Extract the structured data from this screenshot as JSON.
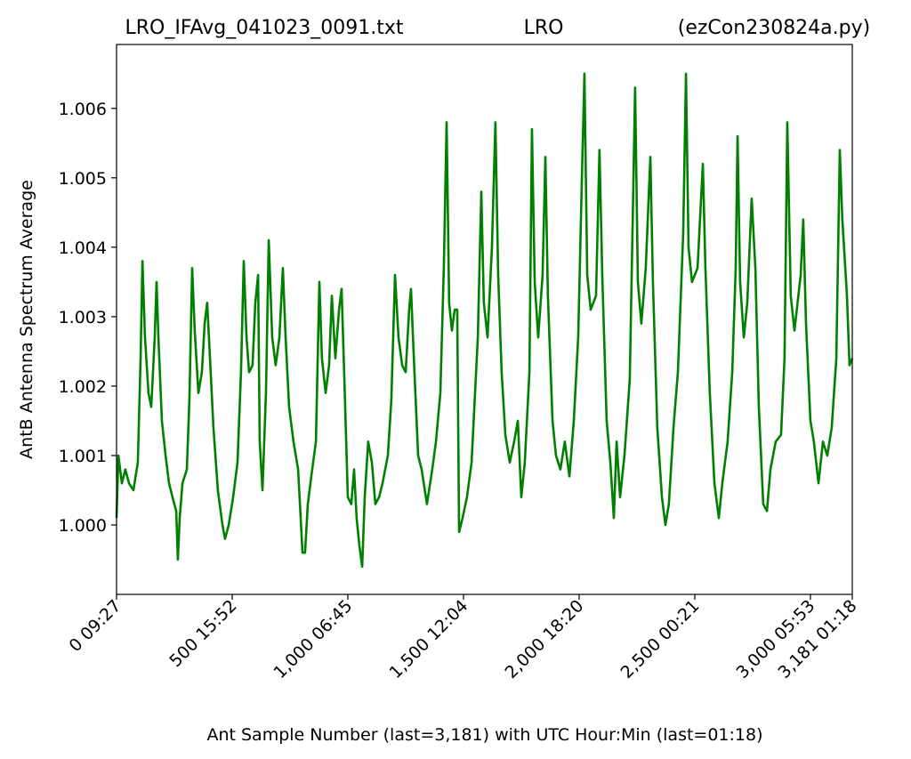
{
  "chart_data": {
    "type": "line",
    "titles": [
      "LRO_IFAvg_041023_0091.txt",
      "LRO",
      "(ezCon230824a.py)"
    ],
    "xlabel": "Ant Sample Number (last=3,181) with UTC Hour:Min (last=01:18)",
    "ylabel": "AntB Antenna Spectrum Average",
    "xlim": [
      0,
      3181
    ],
    "ylim": [
      0.999,
      1.00692
    ],
    "xticks": [
      {
        "value": 0,
        "label": "0  09:27"
      },
      {
        "value": 500,
        "label": "500  15:52"
      },
      {
        "value": 1000,
        "label": "1,000  06:45"
      },
      {
        "value": 1500,
        "label": "1,500  12:04"
      },
      {
        "value": 2000,
        "label": "2,000  18:20"
      },
      {
        "value": 2500,
        "label": "2,500  00:21"
      },
      {
        "value": 3000,
        "label": "3,000  05:53"
      },
      {
        "value": 3181,
        "label": "3,181  01:18"
      }
    ],
    "yticks": [
      {
        "value": 1,
        "label": "1.000"
      },
      1.001,
      1.002,
      1.003,
      1.004,
      1.005,
      1.006
    ],
    "grid": false,
    "series": [
      {
        "name": "AntB",
        "color": "#008000",
        "x": [
          0,
          8,
          23,
          38,
          54,
          73,
          92,
          104,
          112,
          123,
          138,
          150,
          165,
          173,
          181,
          196,
          212,
          227,
          242,
          258,
          265,
          273,
          285,
          304,
          315,
          327,
          338,
          354,
          369,
          381,
          392,
          404,
          419,
          438,
          458,
          469,
          485,
          504,
          523,
          538,
          550,
          562,
          573,
          588,
          600,
          612,
          619,
          631,
          646,
          658,
          673,
          688,
          704,
          719,
          731,
          746,
          765,
          785,
          804,
          815,
          827,
          842,
          862,
          877,
          888,
          904,
          919,
          931,
          946,
          962,
          973,
          985,
          1000,
          1015,
          1027,
          1038,
          1050,
          1062,
          1073,
          1088,
          1104,
          1119,
          1135,
          1150,
          1173,
          1188,
          1204,
          1219,
          1235,
          1250,
          1265,
          1273,
          1288,
          1304,
          1319,
          1342,
          1365,
          1381,
          1400,
          1415,
          1427,
          1438,
          1450,
          1462,
          1473,
          1481,
          1496,
          1515,
          1535,
          1562,
          1577,
          1588,
          1604,
          1623,
          1638,
          1650,
          1665,
          1681,
          1700,
          1719,
          1735,
          1750,
          1765,
          1785,
          1796,
          1808,
          1823,
          1842,
          1854,
          1865,
          1885,
          1900,
          1919,
          1938,
          1958,
          1977,
          1996,
          2012,
          2023,
          2035,
          2050,
          2073,
          2088,
          2100,
          2119,
          2135,
          2150,
          2162,
          2177,
          2196,
          2219,
          2235,
          2242,
          2254,
          2269,
          2288,
          2308,
          2319,
          2338,
          2358,
          2373,
          2388,
          2408,
          2427,
          2450,
          2462,
          2473,
          2488,
          2512,
          2535,
          2546,
          2565,
          2585,
          2604,
          2619,
          2642,
          2662,
          2677,
          2685,
          2696,
          2712,
          2727,
          2746,
          2762,
          2777,
          2796,
          2812,
          2827,
          2850,
          2873,
          2888,
          2900,
          2915,
          2931,
          2958,
          2969,
          2981,
          3000,
          3015,
          3035,
          3054,
          3073,
          3092,
          3112,
          3127,
          3138,
          3158,
          3169,
          3181
        ],
        "values": [
          1.0001,
          1.001,
          1.0006,
          1.0008,
          1.0006,
          1.0005,
          1.0009,
          1.0024,
          1.0038,
          1.0027,
          1.0019,
          1.0017,
          1.0027,
          1.0035,
          1.0027,
          1.0015,
          1.001,
          1.0006,
          1.0004,
          1.0002,
          0.9995,
          1.0001,
          1.0006,
          1.0008,
          1.0018,
          1.0037,
          1.0028,
          1.0019,
          1.0022,
          1.0029,
          1.0032,
          1.0024,
          1.0014,
          1.0005,
          1.0,
          0.9998,
          1.0,
          1.0004,
          1.0009,
          1.0022,
          1.0038,
          1.0027,
          1.0022,
          1.0023,
          1.0032,
          1.0036,
          1.0012,
          1.0005,
          1.0019,
          1.0041,
          1.0027,
          1.0023,
          1.0027,
          1.0037,
          1.0027,
          1.0017,
          1.0012,
          1.0008,
          0.9996,
          0.9996,
          1.0003,
          1.0007,
          1.0012,
          1.0035,
          1.0024,
          1.0019,
          1.0023,
          1.0033,
          1.0024,
          1.0031,
          1.0034,
          1.0021,
          1.0004,
          1.0003,
          1.0008,
          1.0001,
          0.9997,
          0.9994,
          1.0004,
          1.0012,
          1.0009,
          1.0003,
          1.0004,
          1.0006,
          1.001,
          1.0018,
          1.0036,
          1.0027,
          1.0023,
          1.0022,
          1.0031,
          1.0034,
          1.0022,
          1.001,
          1.0008,
          1.0003,
          1.0008,
          1.0012,
          1.0019,
          1.0037,
          1.0058,
          1.0032,
          1.0028,
          1.0031,
          1.0031,
          0.9999,
          1.0001,
          1.0004,
          1.0009,
          1.0027,
          1.0048,
          1.0032,
          1.0027,
          1.004,
          1.0058,
          1.0036,
          1.0022,
          1.0013,
          1.0009,
          1.0012,
          1.0015,
          1.0004,
          1.0009,
          1.0022,
          1.0057,
          1.0035,
          1.0027,
          1.0036,
          1.0053,
          1.0033,
          1.0015,
          1.001,
          1.0008,
          1.0012,
          1.0007,
          1.0015,
          1.0027,
          1.005,
          1.0065,
          1.0036,
          1.0031,
          1.0033,
          1.0054,
          1.0036,
          1.0015,
          1.0009,
          1.0001,
          1.0012,
          1.0004,
          1.001,
          1.0021,
          1.005,
          1.0063,
          1.0035,
          1.0029,
          1.0037,
          1.0053,
          1.0035,
          1.0014,
          1.0004,
          1.0,
          1.0003,
          1.0014,
          1.0022,
          1.0042,
          1.0065,
          1.004,
          1.0035,
          1.0037,
          1.0052,
          1.0037,
          1.0019,
          1.0006,
          1.0001,
          1.0006,
          1.0012,
          1.0022,
          1.0037,
          1.0056,
          1.0035,
          1.0027,
          1.0032,
          1.0047,
          1.0037,
          1.0017,
          1.0003,
          1.0002,
          1.0008,
          1.0012,
          1.0013,
          1.0024,
          1.0058,
          1.0033,
          1.0028,
          1.0036,
          1.0044,
          1.0029,
          1.0015,
          1.0012,
          1.0006,
          1.0012,
          1.001,
          1.0014,
          1.0024,
          1.0054,
          1.0044,
          1.0033,
          1.0023,
          1.0024
        ]
      }
    ]
  }
}
